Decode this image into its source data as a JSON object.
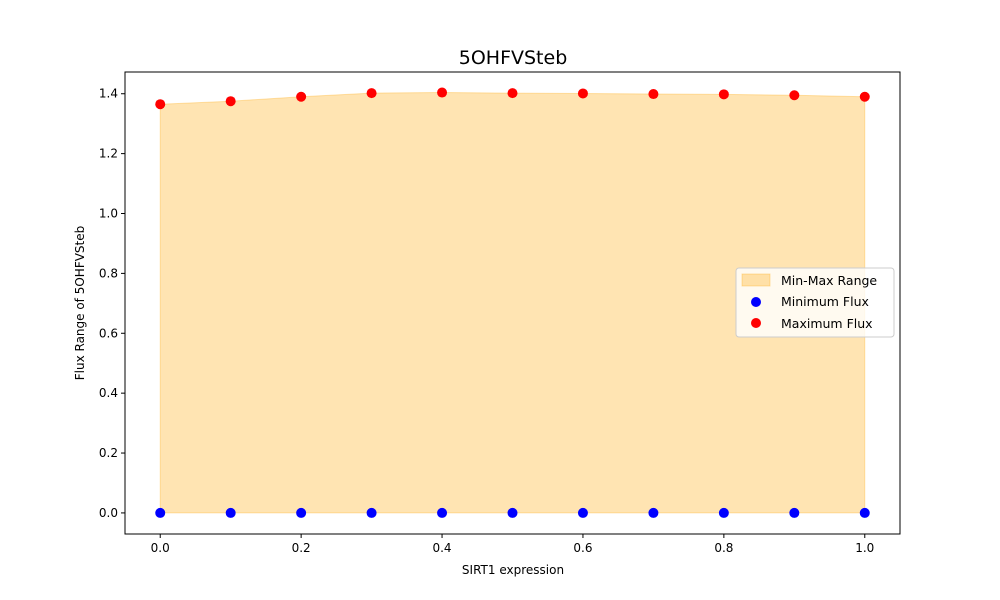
{
  "chart_data": {
    "type": "scatter",
    "title": "5OHFVSteb",
    "xlabel": "SIRT1 expression",
    "ylabel": "Flux Range of 5OHFVSteb",
    "xlim": [
      -0.05,
      1.05
    ],
    "ylim": [
      -0.0704,
      1.4726
    ],
    "x": [
      0.0,
      0.1,
      0.2,
      0.3,
      0.4,
      0.5,
      0.6,
      0.7,
      0.8,
      0.9,
      1.0
    ],
    "x_ticks": [
      "0.0",
      "0.2",
      "0.4",
      "0.6",
      "0.8",
      "1.0"
    ],
    "y_ticks": [
      "0.0",
      "0.2",
      "0.4",
      "0.6",
      "0.8",
      "1.0",
      "1.2",
      "1.4"
    ],
    "series": [
      {
        "name": "Minimum Flux",
        "kind": "scatter",
        "color": "#0000ff",
        "values": [
          0.0,
          0.0,
          0.0,
          0.0,
          0.0,
          0.0,
          0.0,
          0.0,
          0.0,
          0.0,
          0.0
        ]
      },
      {
        "name": "Maximum Flux",
        "kind": "scatter",
        "color": "#ff0000",
        "values": [
          1.365,
          1.375,
          1.39,
          1.402,
          1.404,
          1.402,
          1.401,
          1.399,
          1.398,
          1.395,
          1.39
        ]
      }
    ],
    "fill": {
      "name": "Min-Max Range",
      "color": "#ffa500",
      "alpha": 0.3
    },
    "legend": {
      "placement": "center-right",
      "entries": [
        "Min-Max Range",
        "Minimum Flux",
        "Maximum Flux"
      ]
    },
    "grid": false
  }
}
